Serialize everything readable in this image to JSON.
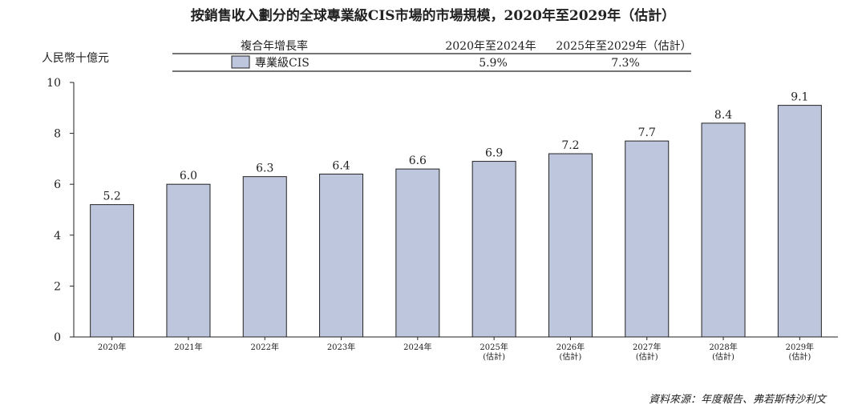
{
  "title": "按銷售收入劃分的全球專業級CIS市場的市場規模，2020年至2029年（估計）",
  "unit_label": "人民幣十億元",
  "legend": {
    "header": "複合年增長率",
    "col1_header": "2020年至2024年",
    "col2_header": "2025年至2029年（估計）",
    "series_label": "專業級CIS",
    "col1_value": "5.9%",
    "col2_value": "7.3%"
  },
  "source": "資料來源：年度報告、弗若斯特沙利文",
  "colors": {
    "bar_fill": "#bdc6dc",
    "bar_stroke": "#222222"
  },
  "chart_data": {
    "type": "bar",
    "title": "按銷售收入劃分的全球專業級CIS市場的市場規模，2020年至2029年（估計）",
    "ylabel": "人民幣十億元",
    "ylim": [
      0,
      10
    ],
    "yticks": [
      0,
      2,
      4,
      6,
      8,
      10
    ],
    "grid": false,
    "categories": [
      [
        "2020年"
      ],
      [
        "2021年"
      ],
      [
        "2022年"
      ],
      [
        "2023年"
      ],
      [
        "2024年"
      ],
      [
        "2025年",
        "(估計)"
      ],
      [
        "2026年",
        "(估計)"
      ],
      [
        "2027年",
        "(估計)"
      ],
      [
        "2028年",
        "(估計)"
      ],
      [
        "2029年",
        "(估計)"
      ]
    ],
    "series": [
      {
        "name": "專業級CIS",
        "values": [
          5.2,
          6.0,
          6.3,
          6.4,
          6.6,
          6.9,
          7.2,
          7.7,
          8.4,
          9.1
        ],
        "labels": [
          "5.2",
          "6.0",
          "6.3",
          "6.4",
          "6.6",
          "6.9",
          "7.2",
          "7.7",
          "8.4",
          "9.1"
        ]
      }
    ]
  }
}
